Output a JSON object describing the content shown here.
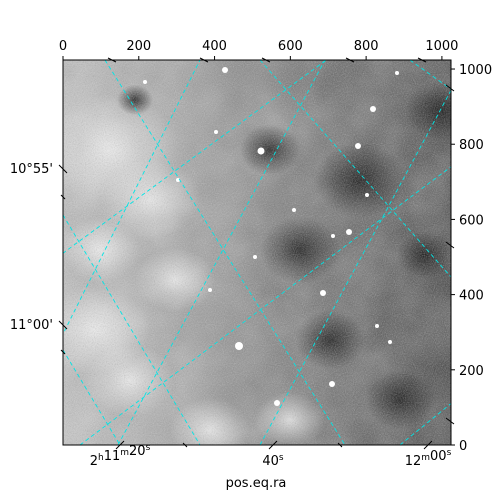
{
  "chart_data": {
    "type": "image",
    "colormap": "grayscale",
    "pixel_axes": {
      "x": {
        "range": [
          0,
          1024
        ],
        "ticks": [
          0,
          200,
          400,
          600,
          800,
          1000
        ],
        "position": "top"
      },
      "y": {
        "range": [
          0,
          1024
        ],
        "ticks": [
          0,
          200,
          400,
          600,
          800,
          1000
        ],
        "position": "right"
      }
    },
    "world_axes": {
      "ra": {
        "label": "pos.eq.ra",
        "ticks": [
          {
            "h": "2",
            "m": "11",
            "s": "20",
            "prefix_h": true,
            "prefix_m": true
          },
          {
            "h": "",
            "m": "",
            "s": "40",
            "prefix_h": false,
            "prefix_m": false
          },
          {
            "h": "",
            "m": "12",
            "s": "00",
            "prefix_h": false,
            "prefix_m": true
          }
        ]
      },
      "dec": {
        "label": "",
        "ticks": [
          "10°55'",
          "11°00'"
        ]
      }
    },
    "grid": true,
    "grid_color": "#00e5e5",
    "legend": "none"
  }
}
